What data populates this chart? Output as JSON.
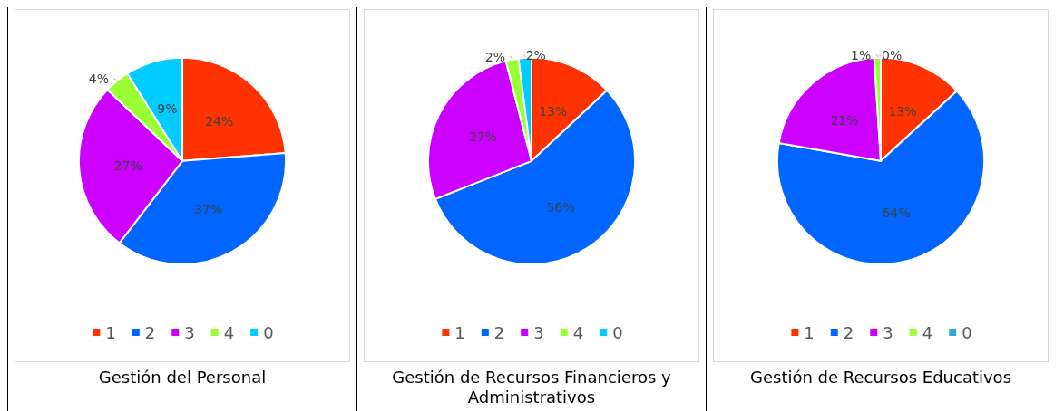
{
  "chart_data": [
    {
      "type": "pie",
      "title": "Gestión del Personal",
      "categories": [
        "1",
        "2",
        "3",
        "4",
        "0"
      ],
      "values": [
        24,
        37,
        27,
        4,
        9
      ],
      "value_labels": [
        "24%",
        "37%",
        "27%",
        "4%",
        "9%"
      ],
      "colors": [
        "#ff3300",
        "#0066ff",
        "#cc00ff",
        "#99ff33",
        "#00ccff"
      ],
      "legend": "bottom"
    },
    {
      "type": "pie",
      "title": "Gestión de Recursos Financieros y Administrativos",
      "categories": [
        "1",
        "2",
        "3",
        "4",
        "0"
      ],
      "values": [
        13,
        56,
        27,
        2,
        2
      ],
      "value_labels": [
        "13%",
        "56%",
        "27%",
        "2%",
        "2%"
      ],
      "colors": [
        "#ff3300",
        "#0066ff",
        "#cc00ff",
        "#99ff33",
        "#00ccff"
      ],
      "legend": "bottom"
    },
    {
      "type": "pie",
      "title": "Gestión de Recursos Educativos",
      "categories": [
        "1",
        "2",
        "3",
        "4",
        "0"
      ],
      "values": [
        13,
        64,
        21,
        1,
        0
      ],
      "value_labels": [
        "13%",
        "64%",
        "21%",
        "1%",
        "0%"
      ],
      "colors": [
        "#ff3300",
        "#0066ff",
        "#cc00ff",
        "#99ff33",
        "#33aacc"
      ],
      "legend": "bottom"
    }
  ]
}
